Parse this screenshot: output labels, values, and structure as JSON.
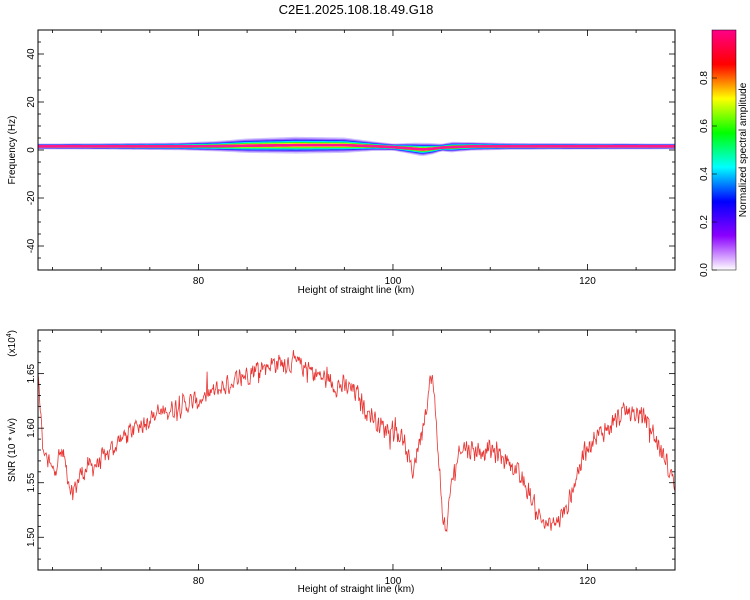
{
  "figure_title": "C2E1.2025.108.18.49.G18",
  "chart_data": [
    {
      "type": "heatmap",
      "xlabel": "Height of straight line (km)",
      "ylabel": "Frequency (Hz)",
      "xlim": [
        63.5,
        129
      ],
      "ylim": [
        -50,
        50
      ],
      "x_ticks": [
        80,
        100,
        120
      ],
      "y_ticks": [
        -40,
        -20,
        0,
        20,
        40
      ],
      "colorbar": {
        "label": "Normalized spectral amplitude",
        "ticks": [
          "0.0",
          "0.2",
          "0.4",
          "0.6",
          "0.8"
        ],
        "range": [
          0,
          1
        ],
        "colors": [
          "#ffffff",
          "#8b00ff",
          "#0000ff",
          "#00ffff",
          "#00ff00",
          "#ffff00",
          "#ff0000",
          "#ff0088"
        ]
      },
      "profile": {
        "x": [
          63.5,
          70,
          78,
          82,
          85,
          90,
          95,
          98,
          100,
          102,
          103,
          104,
          105,
          106,
          108,
          112,
          120,
          129
        ],
        "center_hz": [
          1.5,
          1.5,
          1.5,
          1.6,
          1.8,
          2.0,
          2.0,
          1.6,
          1.2,
          0.6,
          0.2,
          0.5,
          1.0,
          1.2,
          1.5,
          1.5,
          1.5,
          1.5
        ],
        "halfwidth_hz": [
          1.2,
          1.3,
          1.6,
          2.2,
          3.0,
          3.5,
          3.2,
          2.0,
          1.5,
          2.4,
          2.8,
          2.4,
          1.6,
          2.2,
          1.8,
          1.4,
          1.3,
          1.2
        ]
      }
    },
    {
      "type": "line",
      "xlabel": "Height of straight line (km)",
      "ylabel": "SNR (10 * v/v)",
      "y_multiplier": "(x10",
      "y_multiplier_exp": "4",
      "y_multiplier_close": ")",
      "xlim": [
        63.5,
        129
      ],
      "ylim": [
        1.47,
        1.69
      ],
      "x_ticks": [
        80,
        100,
        120
      ],
      "y_ticks": [
        "1.50",
        "1.55",
        "1.60",
        "1.65"
      ],
      "line_color": "#e8322f",
      "trend": {
        "x": [
          63.5,
          64,
          65,
          66,
          67,
          68,
          70,
          72,
          75,
          78,
          80,
          82,
          84,
          86,
          88,
          90,
          92,
          94,
          96,
          97,
          98,
          99,
          100,
          101,
          102,
          103,
          104,
          104.5,
          105,
          105.5,
          106,
          107,
          108,
          110,
          112,
          114,
          115,
          116,
          117,
          118,
          119,
          120,
          122,
          124,
          126,
          127,
          128,
          129
        ],
        "y": [
          1.65,
          1.58,
          1.56,
          1.58,
          1.54,
          1.56,
          1.57,
          1.59,
          1.61,
          1.62,
          1.625,
          1.635,
          1.645,
          1.655,
          1.66,
          1.66,
          1.65,
          1.64,
          1.635,
          1.62,
          1.61,
          1.6,
          1.6,
          1.59,
          1.56,
          1.6,
          1.65,
          1.6,
          1.53,
          1.5,
          1.55,
          1.585,
          1.58,
          1.58,
          1.57,
          1.54,
          1.52,
          1.51,
          1.515,
          1.53,
          1.56,
          1.585,
          1.6,
          1.615,
          1.61,
          1.59,
          1.57,
          1.55
        ]
      },
      "noise_amplitude": 0.012
    }
  ]
}
